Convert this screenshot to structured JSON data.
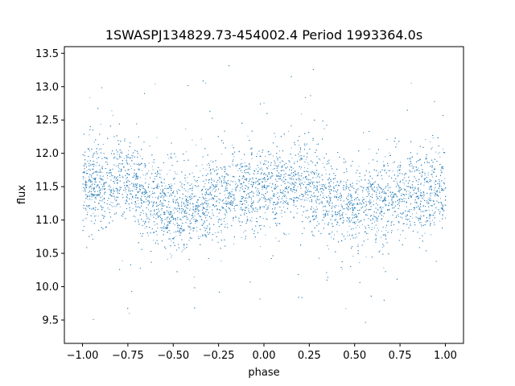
{
  "chart_data": {
    "type": "scatter",
    "title": "1SWASPJ134829.73-454002.4 Period 1993364.0s",
    "xlabel": "phase",
    "ylabel": "flux",
    "xlim": [
      -1.1,
      1.1
    ],
    "ylim": [
      9.15,
      13.6
    ],
    "x_ticks": [
      -1.0,
      -0.75,
      -0.5,
      -0.25,
      0.0,
      0.25,
      0.5,
      0.75,
      1.0
    ],
    "x_tick_labels": [
      "−1.00",
      "−0.75",
      "−0.50",
      "−0.25",
      "0.00",
      "0.25",
      "0.50",
      "0.75",
      "1.00"
    ],
    "y_ticks": [
      9.5,
      10.0,
      10.5,
      11.0,
      11.5,
      12.0,
      12.5,
      13.0,
      13.5
    ],
    "y_tick_labels": [
      "9.5",
      "10.0",
      "10.5",
      "11.0",
      "11.5",
      "12.0",
      "12.5",
      "13.0",
      "13.5"
    ],
    "grid": false,
    "marker_color": "#1f77b4",
    "series": [
      {
        "x_range": [
          -1.0,
          1.0
        ],
        "mean_curve": [
          [
            -1.0,
            11.45
          ],
          [
            -0.9,
            11.55
          ],
          [
            -0.8,
            11.65
          ],
          [
            -0.7,
            11.45
          ],
          [
            -0.6,
            11.3
          ],
          [
            -0.5,
            11.15
          ],
          [
            -0.4,
            11.2
          ],
          [
            -0.3,
            11.35
          ],
          [
            -0.2,
            11.4
          ],
          [
            -0.1,
            11.45
          ],
          [
            0.0,
            11.45
          ],
          [
            0.1,
            11.55
          ],
          [
            0.2,
            11.65
          ],
          [
            0.3,
            11.45
          ],
          [
            0.4,
            11.3
          ],
          [
            0.5,
            11.15
          ],
          [
            0.6,
            11.2
          ],
          [
            0.7,
            11.35
          ],
          [
            0.8,
            11.4
          ],
          [
            0.9,
            11.45
          ],
          [
            1.0,
            11.45
          ]
        ],
        "typical_scatter": 0.3,
        "outlier_range": [
          9.4,
          13.3
        ]
      }
    ]
  }
}
